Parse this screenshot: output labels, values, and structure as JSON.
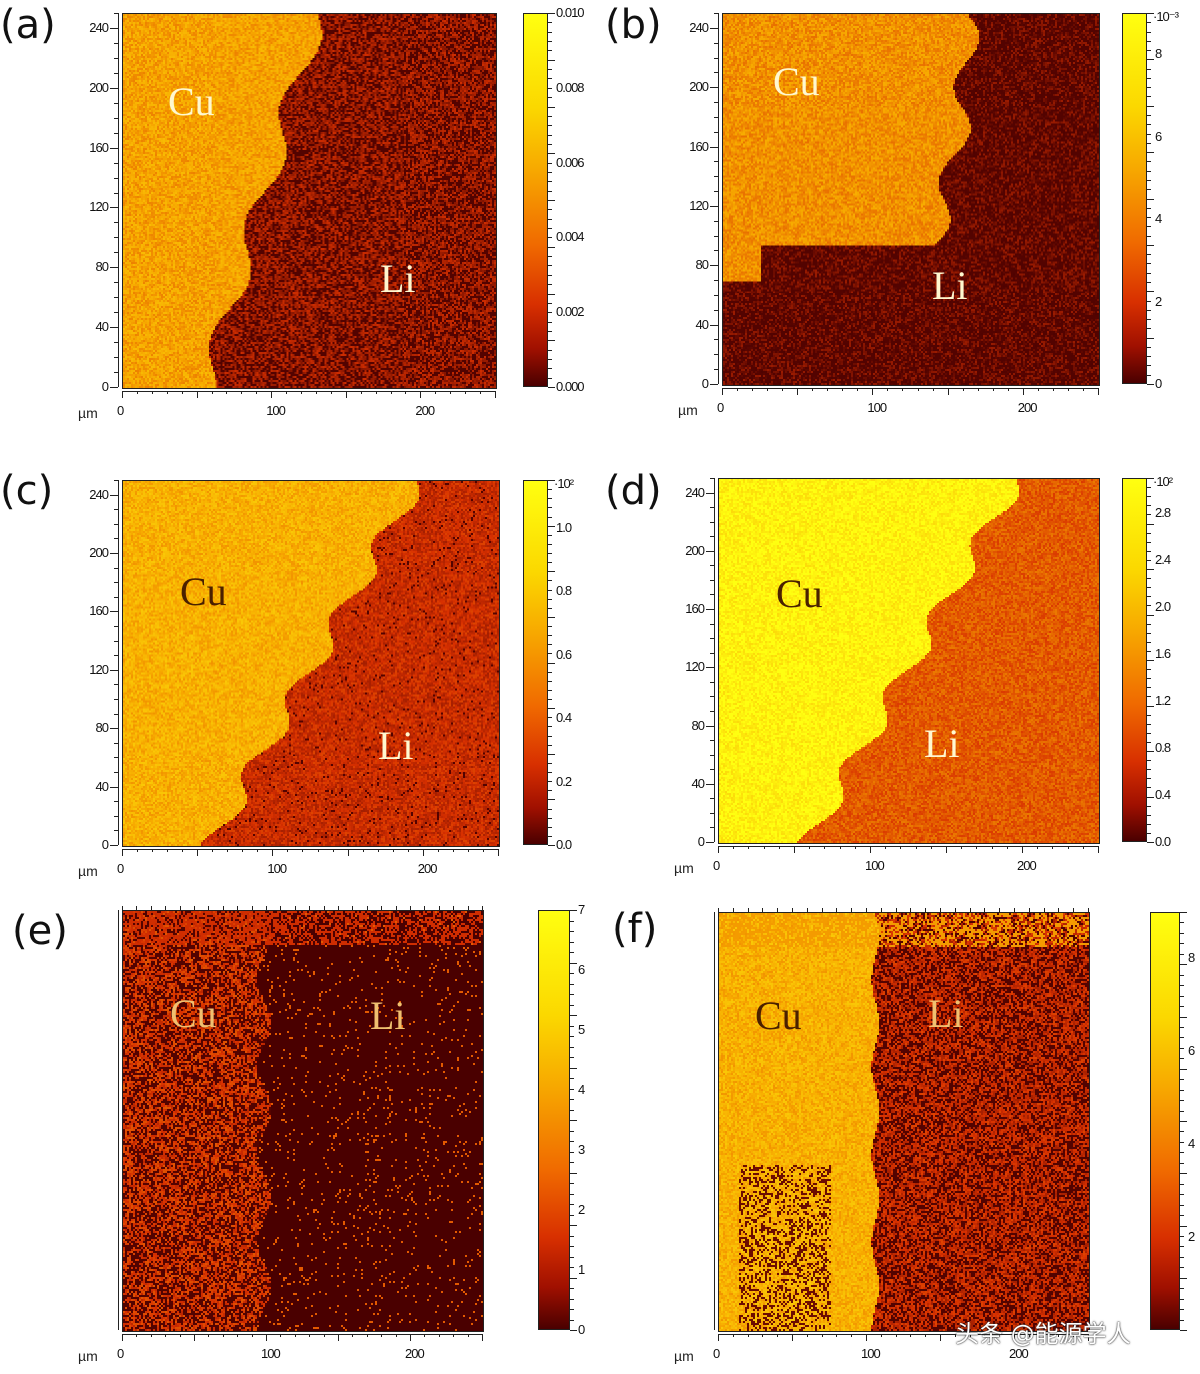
{
  "chart_data": {
    "type": "heatmap",
    "panels": [
      {
        "label": "(a)",
        "x_unit": "µm",
        "x_ticks": [
          "0",
          "100",
          "200"
        ],
        "y_ticks": [
          "0",
          "40",
          "80",
          "120",
          "160",
          "200",
          "240"
        ],
        "xlim": [
          0,
          250
        ],
        "ylim": [
          0,
          250
        ],
        "colorbar": {
          "ticks": [
            "0.000",
            "0.002",
            "0.004",
            "0.006",
            "0.008",
            "0.010"
          ],
          "range": [
            0,
            0.01
          ],
          "multiplier": ""
        },
        "regions": [
          {
            "name": "Cu",
            "side": "left",
            "level": 0.65
          },
          {
            "name": "Li",
            "side": "right",
            "level": 0.22
          }
        ]
      },
      {
        "label": "(b)",
        "x_unit": "µm",
        "x_ticks": [
          "0",
          "100",
          "200"
        ],
        "y_ticks": [
          "0",
          "40",
          "80",
          "120",
          "160",
          "200",
          "240"
        ],
        "xlim": [
          0,
          250
        ],
        "ylim": [
          0,
          250
        ],
        "colorbar": {
          "ticks": [
            "0",
            "2",
            "4",
            "6",
            "8"
          ],
          "range": [
            0,
            9
          ],
          "multiplier": "·10⁻³"
        },
        "regions": [
          {
            "name": "Cu",
            "side": "upper-left",
            "level": 0.6
          },
          {
            "name": "Li",
            "side": "lower-right",
            "level": 0.1
          }
        ]
      },
      {
        "label": "(c)",
        "x_unit": "µm",
        "x_ticks": [
          "0",
          "100",
          "200"
        ],
        "y_ticks": [
          "0",
          "40",
          "80",
          "120",
          "160",
          "200",
          "240"
        ],
        "xlim": [
          0,
          250
        ],
        "ylim": [
          0,
          250
        ],
        "colorbar": {
          "ticks": [
            "0.0",
            "0.2",
            "0.4",
            "0.6",
            "0.8",
            "1.0"
          ],
          "range": [
            0,
            1.15
          ],
          "multiplier": "·10²"
        },
        "regions": [
          {
            "name": "Cu",
            "side": "left",
            "level": 0.7
          },
          {
            "name": "Li",
            "side": "right",
            "level": 0.3
          }
        ]
      },
      {
        "label": "(d)",
        "x_unit": "µm",
        "x_ticks": [
          "0",
          "100",
          "200"
        ],
        "y_ticks": [
          "0",
          "40",
          "80",
          "120",
          "160",
          "200",
          "240"
        ],
        "xlim": [
          0,
          250
        ],
        "ylim": [
          0,
          250
        ],
        "colorbar": {
          "ticks": [
            "0.0",
            "0.4",
            "0.8",
            "1.2",
            "1.6",
            "2.0",
            "2.4",
            "2.8"
          ],
          "range": [
            0,
            3.1
          ],
          "multiplier": "·10²"
        },
        "regions": [
          {
            "name": "Cu",
            "side": "left",
            "level": 0.95
          },
          {
            "name": "Li",
            "side": "right",
            "level": 0.45
          }
        ]
      },
      {
        "label": "(e)",
        "x_unit": "µm",
        "x_ticks": [
          "0",
          "100",
          "200"
        ],
        "y_ticks": [],
        "xlim": [
          0,
          250
        ],
        "ylim": [
          0,
          250
        ],
        "colorbar": {
          "ticks": [
            "0",
            "1",
            "2",
            "3",
            "4",
            "5",
            "6",
            "7"
          ],
          "range": [
            0,
            7
          ],
          "multiplier": ""
        },
        "regions": [
          {
            "name": "Cu",
            "side": "left",
            "level": 0.35
          },
          {
            "name": "Li",
            "side": "right",
            "level": 0.02
          }
        ]
      },
      {
        "label": "(f)",
        "x_unit": "µm",
        "x_ticks": [
          "0",
          "100",
          "200"
        ],
        "y_ticks": [],
        "xlim": [
          0,
          250
        ],
        "ylim": [
          0,
          250
        ],
        "colorbar": {
          "ticks": [
            "2",
            "4",
            "6",
            "8"
          ],
          "range": [
            0,
            9
          ],
          "multiplier": ""
        },
        "regions": [
          {
            "name": "Cu",
            "side": "left",
            "level": 0.7
          },
          {
            "name": "Li",
            "side": "right",
            "level": 0.3
          }
        ]
      }
    ],
    "colormap": [
      "#4a0000",
      "#d83000",
      "#f7a800",
      "#ffff10"
    ]
  },
  "watermark": "头条 @能源学人"
}
